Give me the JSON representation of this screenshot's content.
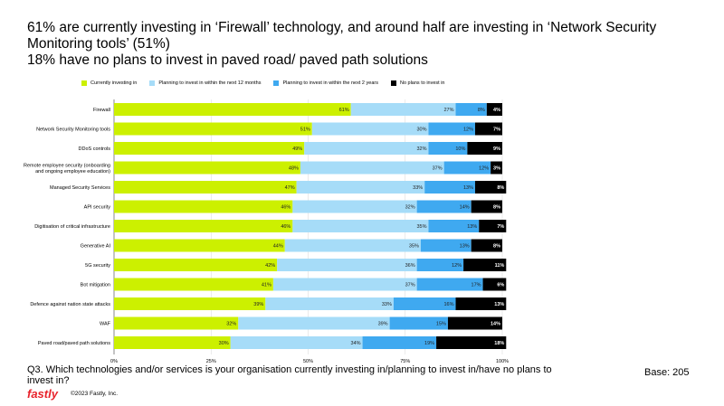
{
  "title_lines": [
    "61% are currently investing in ‘Firewall’ technology, and around half are investing in ‘Network Security Monitoring tools’ (51%)",
    "18% have no plans to invest in paved road/ paved path solutions"
  ],
  "chart_data": {
    "type": "bar",
    "orientation": "horizontal",
    "stacked": true,
    "categories": [
      "Firewall",
      "Network Security Monitoring tools",
      "DDoS controls",
      "Remote employee security (onboarding and ongoing employee education)",
      "Managed Security Services",
      "API security",
      "Digitisation of critical infrastructure",
      "Generative AI",
      "5G security",
      "Bot mitigation",
      "Defence against nation state attacks",
      "WAF",
      "Paved road/paved path solutions"
    ],
    "series": [
      {
        "name": "Currently investing in",
        "color": "#ccf000",
        "values": [
          61,
          51,
          49,
          48,
          47,
          46,
          46,
          44,
          42,
          41,
          39,
          32,
          30
        ]
      },
      {
        "name": "Planning to invest in within the next 12 months",
        "color": "#a6dcf8",
        "values": [
          27,
          30,
          32,
          37,
          33,
          32,
          35,
          35,
          36,
          37,
          33,
          39,
          34
        ]
      },
      {
        "name": "Planning to invest in within the next 2 years",
        "color": "#3fa9f0",
        "values": [
          8,
          12,
          10,
          12,
          13,
          14,
          13,
          13,
          12,
          17,
          16,
          15,
          19
        ]
      },
      {
        "name": "No plans to invest in",
        "color": "#000000",
        "values": [
          4,
          7,
          9,
          3,
          8,
          8,
          7,
          8,
          11,
          6,
          13,
          14,
          18
        ]
      }
    ],
    "xticks": [
      "0%",
      "25%",
      "50%",
      "75%",
      "100%"
    ],
    "xlim": [
      0,
      100
    ],
    "grid": true,
    "legend": "top"
  },
  "question": "Q3.  Which technologies and/or services is your organisation currently investing in/planning to invest in/have no plans to invest in?",
  "base": "Base: 205",
  "logo": "fastly",
  "copyright": "©2023 Fastly, Inc."
}
